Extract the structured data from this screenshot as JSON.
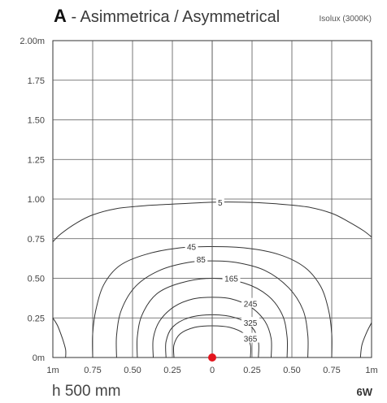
{
  "header": {
    "letter": "A",
    "title": " - Asimmetrica / Asymmetrical",
    "subtitle": "Isolux (3000K)"
  },
  "footer": {
    "height": "h 500 mm",
    "power": "6W"
  },
  "chart_data": {
    "type": "line",
    "title": "A - Asimmetrica / Asymmetrical",
    "subtitle": "Isolux (3000K)",
    "xlabel": "",
    "ylabel": "",
    "x_ticks": [
      "1m",
      "0.75",
      "0.50",
      "0.25",
      "0",
      "0.25",
      "0.50",
      "0.75",
      "1m"
    ],
    "y_ticks": [
      "0m",
      "0.25",
      "0.50",
      "0.75",
      "1.00",
      "1.25",
      "1.50",
      "1.75",
      "2.00m"
    ],
    "xlim": [
      -1.0,
      1.0
    ],
    "ylim": [
      0,
      2.0
    ],
    "grid": true,
    "source_point": {
      "x": 0,
      "y": 0,
      "color": "#e3151d"
    },
    "contour_labels": [
      "5",
      "45",
      "85",
      "165",
      "245",
      "325",
      "365"
    ],
    "contours": [
      {
        "label": "5",
        "points": [
          [
            -1.0,
            0.73
          ],
          [
            -0.95,
            0.78
          ],
          [
            -0.85,
            0.85
          ],
          [
            -0.75,
            0.9
          ],
          [
            -0.6,
            0.94
          ],
          [
            -0.4,
            0.96
          ],
          [
            -0.2,
            0.97
          ],
          [
            0,
            0.98
          ],
          [
            0.2,
            0.98
          ],
          [
            0.4,
            0.97
          ],
          [
            0.6,
            0.95
          ],
          [
            0.75,
            0.91
          ],
          [
            0.85,
            0.86
          ],
          [
            0.95,
            0.8
          ],
          [
            1.0,
            0.76
          ]
        ],
        "label_at": [
          0.05,
          0.98
        ]
      },
      {
        "label": "5-left-corner",
        "points": [
          [
            -1.0,
            0.25
          ],
          [
            -0.97,
            0.2
          ],
          [
            -0.94,
            0.12
          ],
          [
            -0.92,
            0.05
          ],
          [
            -0.92,
            0.0
          ]
        ]
      },
      {
        "label": "5-right-corner",
        "points": [
          [
            1.0,
            0.22
          ],
          [
            0.97,
            0.16
          ],
          [
            0.94,
            0.08
          ],
          [
            0.93,
            0.0
          ]
        ]
      },
      {
        "label": "45",
        "points": [
          [
            -0.75,
            0.0
          ],
          [
            -0.75,
            0.15
          ],
          [
            -0.73,
            0.3
          ],
          [
            -0.68,
            0.46
          ],
          [
            -0.58,
            0.58
          ],
          [
            -0.42,
            0.65
          ],
          [
            -0.22,
            0.69
          ],
          [
            0,
            0.7
          ],
          [
            0.22,
            0.69
          ],
          [
            0.42,
            0.65
          ],
          [
            0.58,
            0.57
          ],
          [
            0.68,
            0.45
          ],
          [
            0.73,
            0.3
          ],
          [
            0.75,
            0.15
          ],
          [
            0.75,
            0.0
          ]
        ],
        "label_at": [
          -0.13,
          0.7
        ]
      },
      {
        "label": "85",
        "points": [
          [
            -0.6,
            0.0
          ],
          [
            -0.6,
            0.14
          ],
          [
            -0.57,
            0.3
          ],
          [
            -0.48,
            0.45
          ],
          [
            -0.33,
            0.55
          ],
          [
            -0.15,
            0.6
          ],
          [
            0,
            0.61
          ],
          [
            0.15,
            0.6
          ],
          [
            0.33,
            0.55
          ],
          [
            0.48,
            0.44
          ],
          [
            0.57,
            0.3
          ],
          [
            0.6,
            0.14
          ],
          [
            0.6,
            0.0
          ]
        ],
        "label_at": [
          -0.07,
          0.62
        ]
      },
      {
        "label": "165",
        "points": [
          [
            -0.47,
            0.0
          ],
          [
            -0.47,
            0.13
          ],
          [
            -0.44,
            0.27
          ],
          [
            -0.35,
            0.4
          ],
          [
            -0.2,
            0.47
          ],
          [
            0,
            0.5
          ],
          [
            0.2,
            0.47
          ],
          [
            0.35,
            0.39
          ],
          [
            0.44,
            0.27
          ],
          [
            0.47,
            0.13
          ],
          [
            0.47,
            0.0
          ]
        ],
        "label_at": [
          0.12,
          0.5
        ]
      },
      {
        "label": "245",
        "points": [
          [
            -0.37,
            0.0
          ],
          [
            -0.37,
            0.12
          ],
          [
            -0.33,
            0.23
          ],
          [
            -0.24,
            0.32
          ],
          [
            -0.12,
            0.37
          ],
          [
            0,
            0.38
          ],
          [
            0.12,
            0.37
          ],
          [
            0.24,
            0.32
          ],
          [
            0.33,
            0.23
          ],
          [
            0.37,
            0.12
          ],
          [
            0.37,
            0.0
          ]
        ],
        "label_at": [
          0.24,
          0.34
        ]
      },
      {
        "label": "325",
        "points": [
          [
            -0.29,
            0.0
          ],
          [
            -0.29,
            0.1
          ],
          [
            -0.25,
            0.19
          ],
          [
            -0.15,
            0.25
          ],
          [
            0,
            0.27
          ],
          [
            0.15,
            0.25
          ],
          [
            0.25,
            0.19
          ],
          [
            0.29,
            0.1
          ],
          [
            0.29,
            0.0
          ]
        ],
        "label_at": [
          0.24,
          0.22
        ]
      },
      {
        "label": "365",
        "points": [
          [
            -0.24,
            0.0
          ],
          [
            -0.24,
            0.08
          ],
          [
            -0.2,
            0.15
          ],
          [
            -0.11,
            0.19
          ],
          [
            0,
            0.2
          ],
          [
            0.11,
            0.19
          ],
          [
            0.2,
            0.15
          ],
          [
            0.24,
            0.08
          ],
          [
            0.24,
            0.0
          ]
        ],
        "label_at": [
          0.24,
          0.12
        ]
      }
    ]
  }
}
